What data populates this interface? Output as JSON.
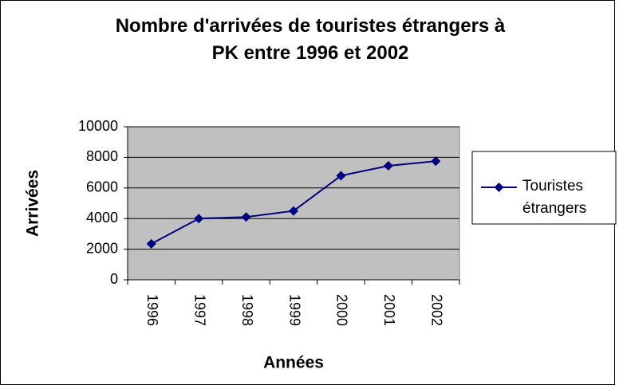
{
  "chart_data": {
    "type": "line",
    "title": "Nombre d'arrivées de touristes étrangers à\nPK entre 1996 et 2002",
    "x_label": "Années",
    "y_label": "Arrivées",
    "categories": [
      "1996",
      "1997",
      "1998",
      "1999",
      "2000",
      "2001",
      "2002"
    ],
    "series": [
      {
        "name": "Touristes étrangers",
        "color": "#000080",
        "values": [
          2350,
          4000,
          4100,
          4500,
          6800,
          7450,
          7750
        ]
      }
    ],
    "ylim": [
      0,
      10000
    ],
    "yticks": [
      0,
      2000,
      4000,
      6000,
      8000,
      10000
    ],
    "grid": true,
    "legend": "right"
  }
}
